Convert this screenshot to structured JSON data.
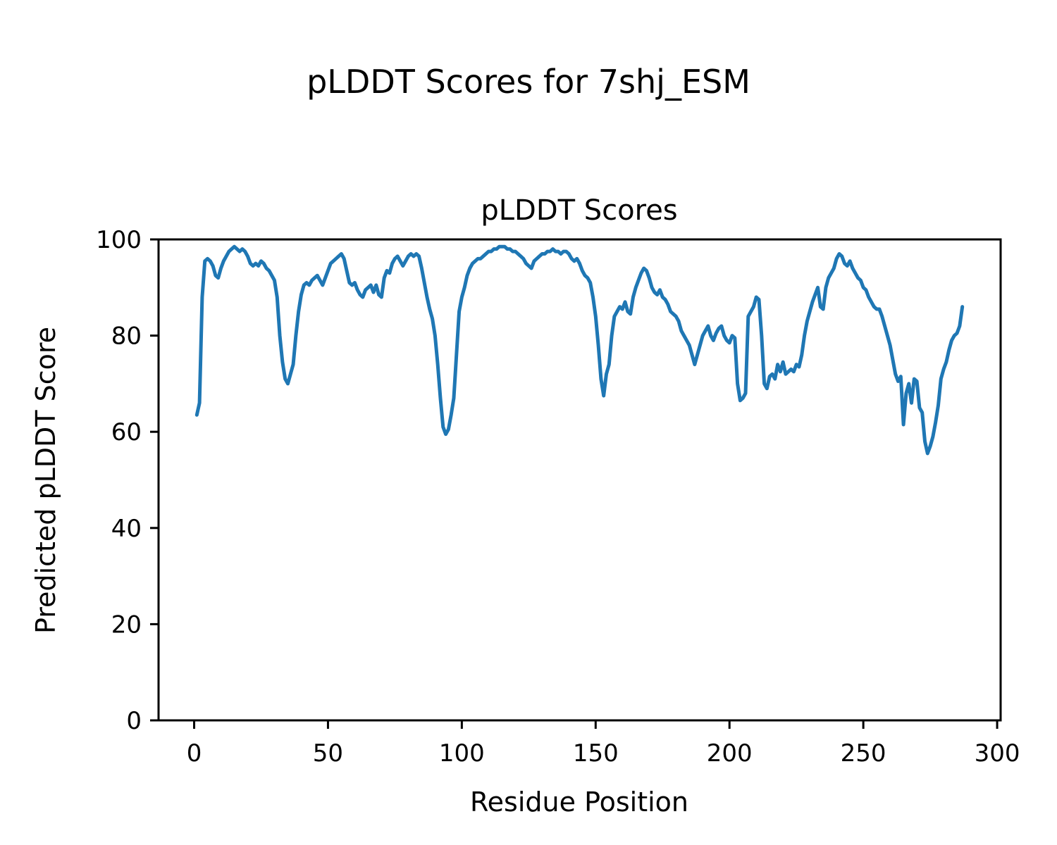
{
  "figure": {
    "title": "pLDDT Scores for 7shj_ESM"
  },
  "chart_data": {
    "type": "line",
    "title": "pLDDT Scores",
    "xlabel": "Residue Position",
    "ylabel": "Predicted pLDDT Score",
    "series_name": "pLDDT",
    "line_color": "#1f77b4",
    "xlim": [
      -13.3,
      301.3
    ],
    "ylim": [
      0,
      100
    ],
    "xticks": [
      0,
      50,
      100,
      150,
      200,
      250,
      300
    ],
    "yticks": [
      0,
      20,
      40,
      60,
      80,
      100
    ],
    "x_start": 1,
    "x_step": 1,
    "y": [
      63.5,
      66,
      88,
      95.5,
      96,
      95.5,
      94.5,
      92.5,
      92,
      94,
      95.5,
      96.5,
      97.5,
      98,
      98.5,
      98,
      97.5,
      98,
      97.5,
      96.5,
      95,
      94.5,
      95,
      94.5,
      95.5,
      95,
      94,
      93.5,
      92.5,
      91.5,
      88,
      80,
      74.5,
      71,
      70,
      72,
      74,
      80,
      85,
      88.5,
      90.5,
      91,
      90.5,
      91.5,
      92,
      92.5,
      91.5,
      90.5,
      92,
      93.5,
      95,
      95.5,
      96,
      96.5,
      97,
      96,
      93.5,
      91,
      90.5,
      91,
      89.5,
      88.5,
      88,
      89.5,
      90,
      90.5,
      89,
      90.5,
      88.5,
      88,
      92,
      93.5,
      93,
      95,
      96,
      96.5,
      95.5,
      94.5,
      95.5,
      96.5,
      97,
      96.5,
      97,
      96.5,
      94,
      91,
      88,
      85.5,
      83.5,
      80,
      74,
      67,
      61,
      59.5,
      60.5,
      63.5,
      67,
      76,
      85,
      88,
      90,
      92.5,
      94,
      95,
      95.5,
      96,
      96,
      96.5,
      97,
      97.5,
      97.5,
      98,
      98,
      98.5,
      98.5,
      98.5,
      98,
      98,
      97.5,
      97.5,
      97,
      96.5,
      96,
      95,
      94.5,
      94,
      95.5,
      96,
      96.5,
      97,
      97,
      97.5,
      97.5,
      98,
      97.5,
      97.5,
      97,
      97.5,
      97.5,
      97,
      96,
      95.5,
      96,
      95,
      93.5,
      92.5,
      92,
      91,
      88,
      84,
      78,
      71,
      67.5,
      72,
      74,
      80,
      84,
      85,
      86,
      85.5,
      87,
      85,
      84.5,
      88,
      90,
      91.5,
      93,
      94,
      93.5,
      92,
      90,
      89,
      88.5,
      89.5,
      88,
      87.5,
      86.5,
      85,
      84.5,
      84,
      83,
      81,
      80,
      79,
      78,
      76,
      74,
      76,
      78,
      80,
      81,
      82,
      80,
      79,
      80.5,
      81.5,
      82,
      80,
      79,
      78.5,
      80,
      79.5,
      70,
      66.5,
      67,
      68,
      84,
      85,
      86,
      88,
      87.5,
      80,
      70,
      69,
      71.5,
      72,
      71,
      74,
      72.5,
      74.5,
      72,
      72.5,
      73,
      72.5,
      74,
      73.5,
      76,
      80,
      83,
      85,
      87,
      88.5,
      90,
      86,
      85.5,
      90,
      92,
      93,
      94,
      96,
      97,
      96.5,
      95,
      94.5,
      95.5,
      94,
      93,
      92,
      91.5,
      90,
      89.5,
      88,
      87,
      86,
      85.5,
      85.5,
      84,
      82,
      80,
      78,
      75,
      72,
      70.5,
      71.5,
      61.5,
      68,
      70,
      66,
      71,
      70.5,
      65,
      64,
      58,
      55.5,
      57,
      59,
      62,
      65.5,
      71,
      73,
      74.5,
      77,
      79,
      80,
      80.5,
      82,
      86
    ]
  }
}
